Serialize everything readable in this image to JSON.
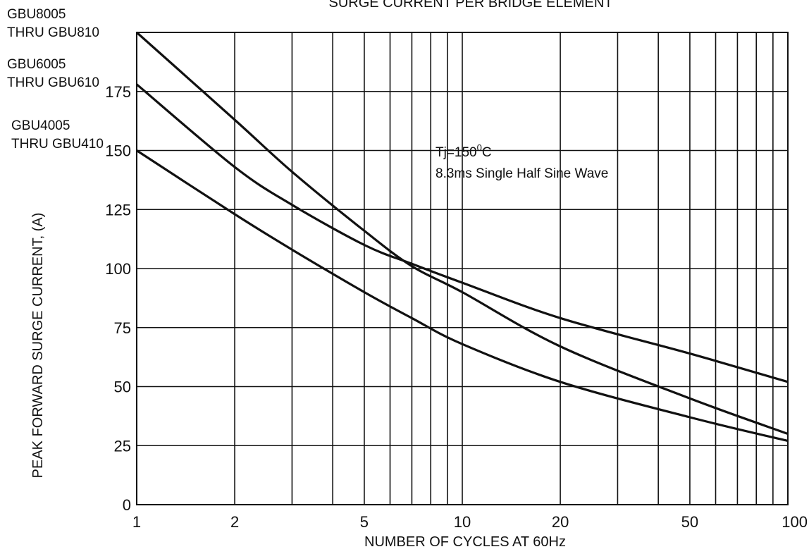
{
  "chart_data": {
    "type": "line",
    "title": "SURGE CURRENT PER BRIDGE ELEMENT",
    "xlabel": "NUMBER OF CYCLES AT 60Hz",
    "ylabel": "PEAK FORWARD SURGE CURRENT, (A)",
    "x_scale": "log",
    "xlim": [
      1,
      100
    ],
    "ylim": [
      0,
      200
    ],
    "grid": true,
    "x_ticks": [
      1,
      2,
      5,
      10,
      20,
      50,
      100
    ],
    "x_tick_labels": [
      "1",
      "2",
      "5",
      "10",
      "20",
      "50",
      "100"
    ],
    "y_ticks": [
      0,
      25,
      50,
      75,
      100,
      125,
      150,
      175
    ],
    "y_tick_labels": [
      "0",
      "25",
      "50",
      "75",
      "100",
      "125",
      "150",
      "175"
    ],
    "annotation": {
      "line1": "Tj=150",
      "sup": "0",
      "line1_suffix": "C",
      "line2": "8.3ms Single Half Sine Wave"
    },
    "series": [
      {
        "name_line1": "GBU8005",
        "name_line2": "THRU GBU810",
        "x": [
          1,
          2,
          3,
          5,
          7,
          10,
          20,
          50,
          100
        ],
        "y": [
          200,
          163,
          141,
          116,
          101,
          90,
          67,
          45,
          30
        ]
      },
      {
        "name_line1": "GBU6005",
        "name_line2": "THRU GBU610",
        "x": [
          1,
          2,
          3,
          5,
          7,
          10,
          20,
          50,
          100
        ],
        "y": [
          178,
          143,
          127,
          110,
          102,
          94,
          79,
          64,
          52
        ]
      },
      {
        "name_line1": "GBU4005",
        "name_line2": "THRU GBU410",
        "x": [
          1,
          2,
          3,
          5,
          7,
          10,
          20,
          50,
          100
        ],
        "y": [
          150,
          123,
          108,
          90,
          79,
          68,
          52,
          37,
          27
        ]
      }
    ]
  }
}
